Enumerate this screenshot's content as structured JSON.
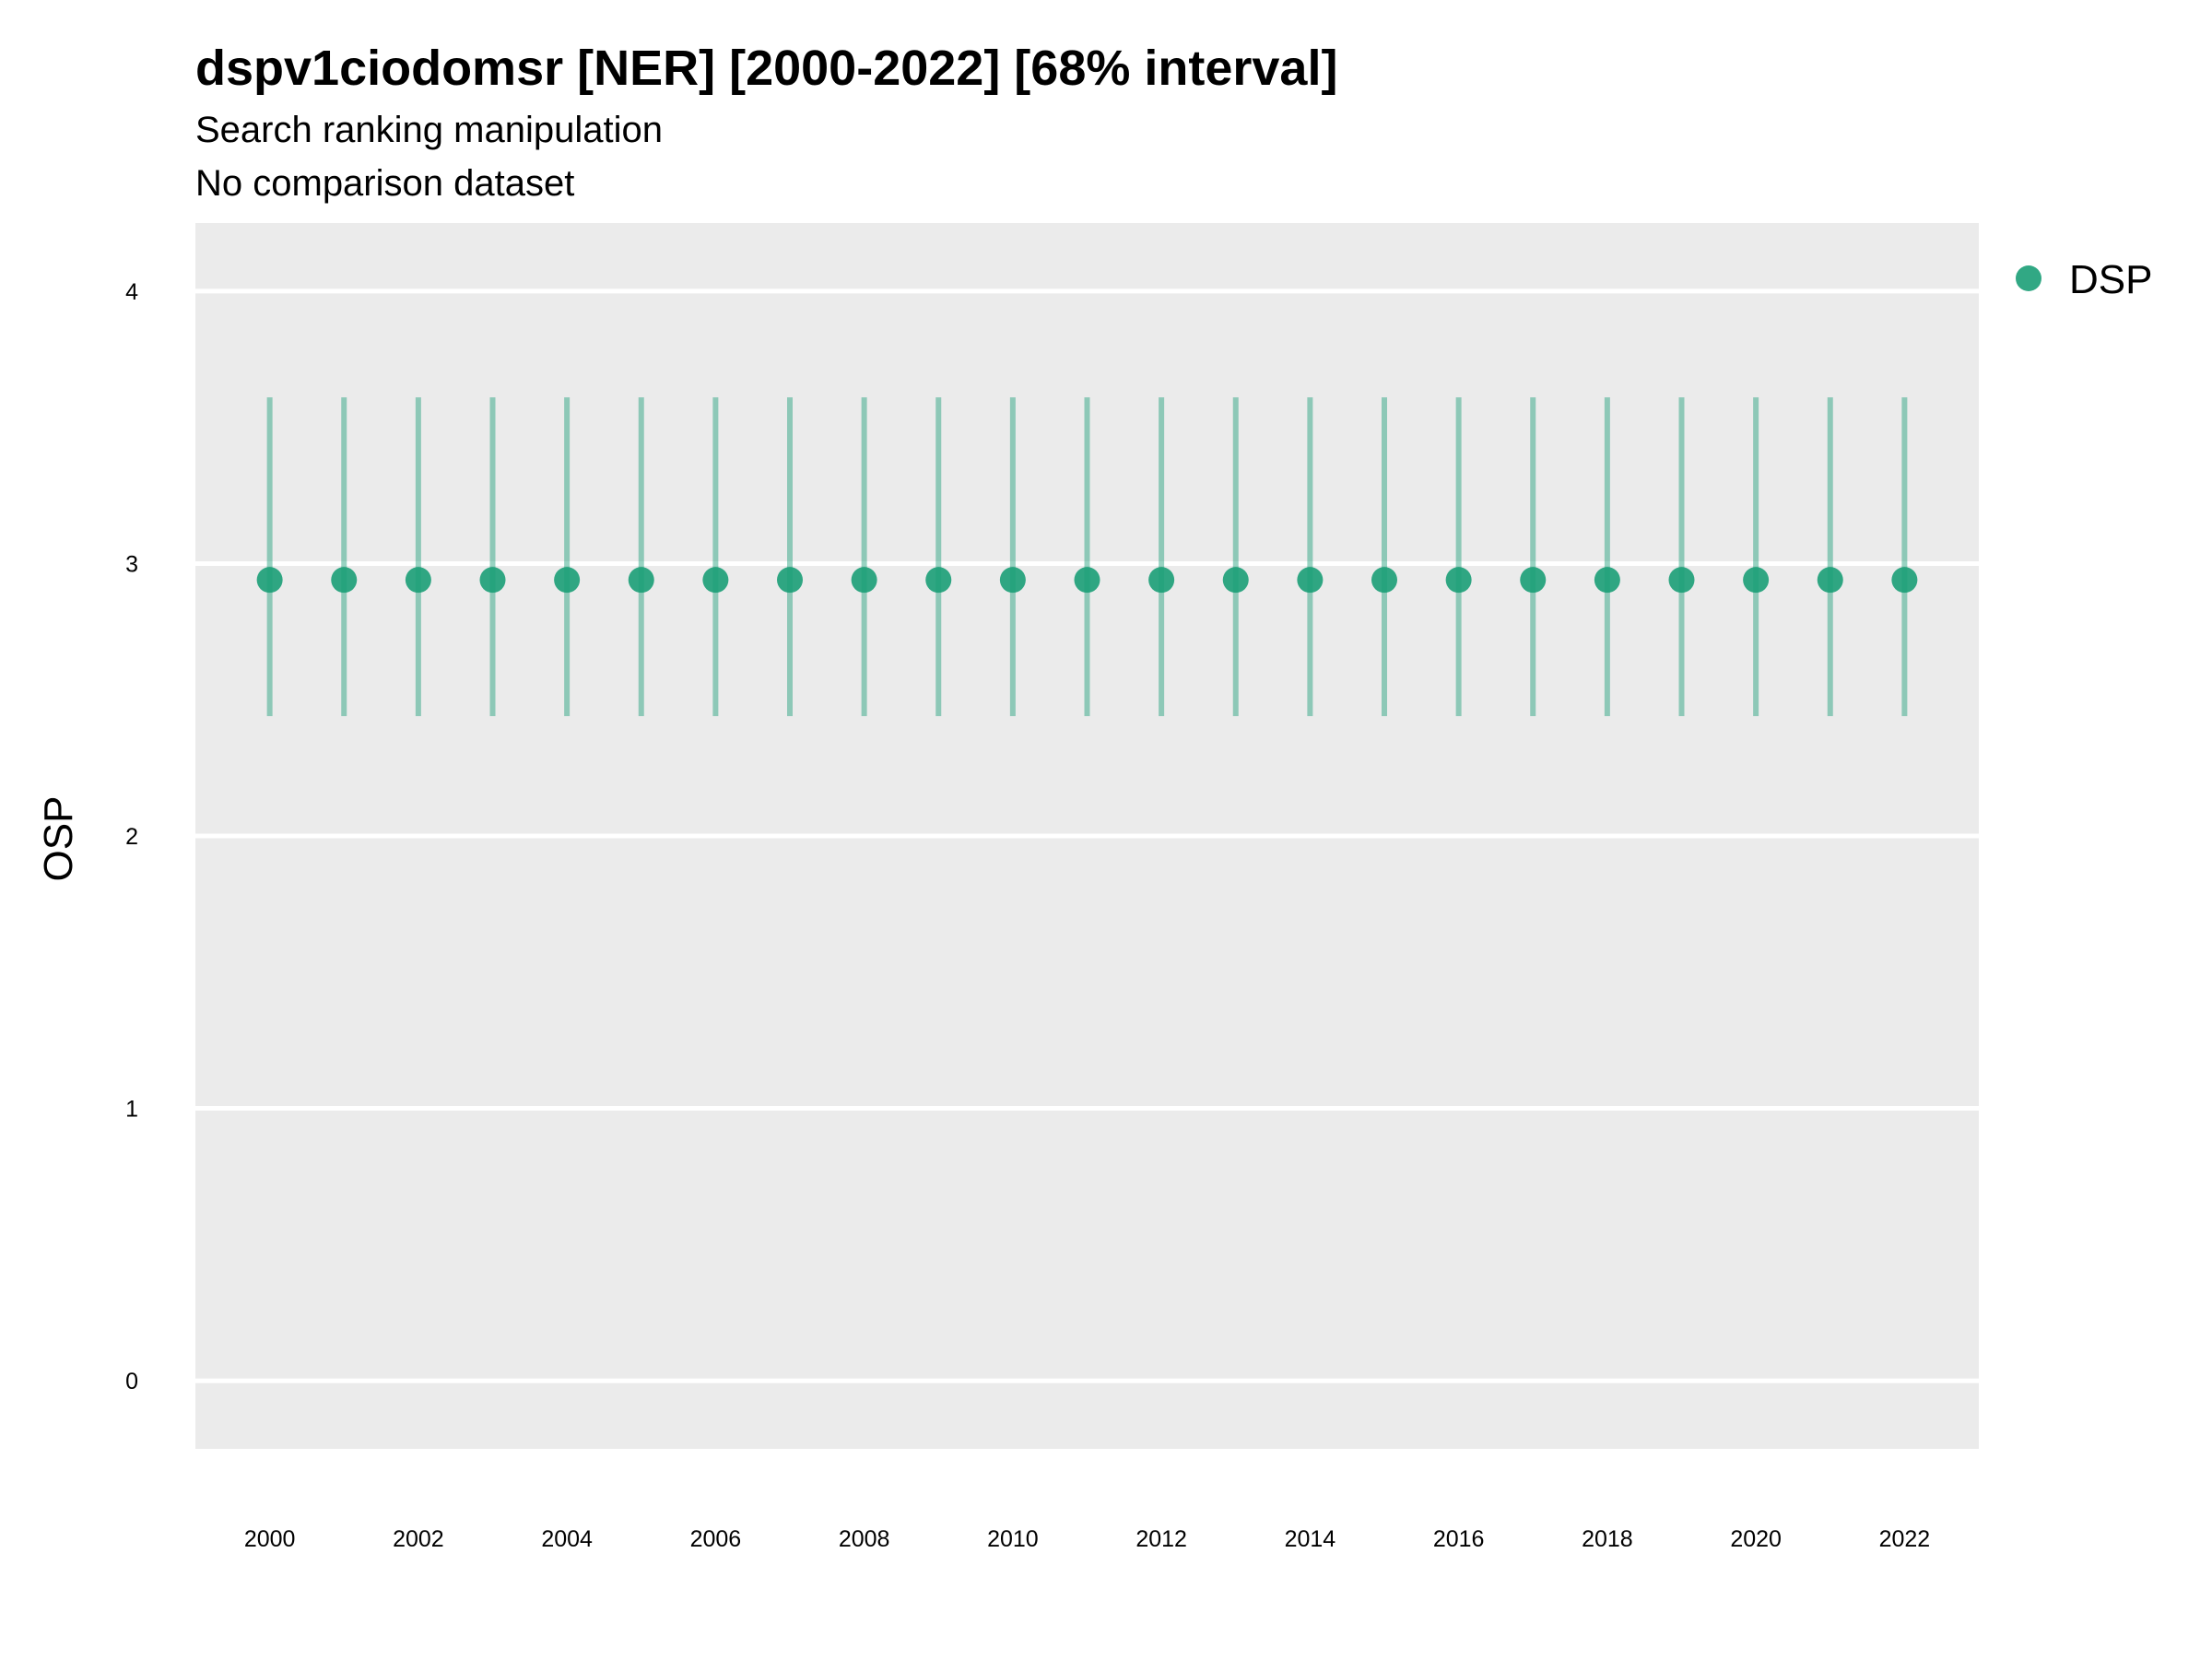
{
  "chart_data": {
    "type": "scatter",
    "title": "dspv1ciodomsr [NER] [2000-2022] [68% interval]",
    "subtitle_lines": [
      "Search ranking manipulation",
      "No comparison dataset"
    ],
    "xlabel": "",
    "ylabel": "OSP",
    "xlim": [
      1999,
      2023
    ],
    "ylim": [
      -0.25,
      4.25
    ],
    "x_ticks": [
      2000,
      2002,
      2004,
      2006,
      2008,
      2010,
      2012,
      2014,
      2016,
      2018,
      2020,
      2022
    ],
    "y_ticks": [
      0,
      1,
      2,
      3,
      4
    ],
    "grid": "horizontal",
    "legend_position": "right",
    "series": [
      {
        "name": "DSP",
        "color": "#1b9e77",
        "x": [
          2000,
          2001,
          2002,
          2003,
          2004,
          2005,
          2006,
          2007,
          2008,
          2009,
          2010,
          2011,
          2012,
          2013,
          2014,
          2015,
          2016,
          2017,
          2018,
          2019,
          2020,
          2021,
          2022
        ],
        "y": [
          2.94,
          2.94,
          2.94,
          2.94,
          2.94,
          2.94,
          2.94,
          2.94,
          2.94,
          2.94,
          2.94,
          2.94,
          2.94,
          2.94,
          2.94,
          2.94,
          2.94,
          2.94,
          2.94,
          2.94,
          2.94,
          2.94,
          2.94
        ],
        "lower": [
          2.44,
          2.44,
          2.44,
          2.44,
          2.44,
          2.44,
          2.44,
          2.44,
          2.44,
          2.44,
          2.44,
          2.44,
          2.44,
          2.44,
          2.44,
          2.44,
          2.44,
          2.44,
          2.44,
          2.44,
          2.44,
          2.44,
          2.44
        ],
        "upper": [
          3.61,
          3.61,
          3.61,
          3.61,
          3.61,
          3.61,
          3.61,
          3.61,
          3.61,
          3.61,
          3.61,
          3.61,
          3.61,
          3.61,
          3.61,
          3.61,
          3.61,
          3.61,
          3.61,
          3.61,
          3.61,
          3.61,
          3.61
        ]
      }
    ],
    "panel_color": "#ebebeb",
    "grid_color": "#ffffff"
  }
}
